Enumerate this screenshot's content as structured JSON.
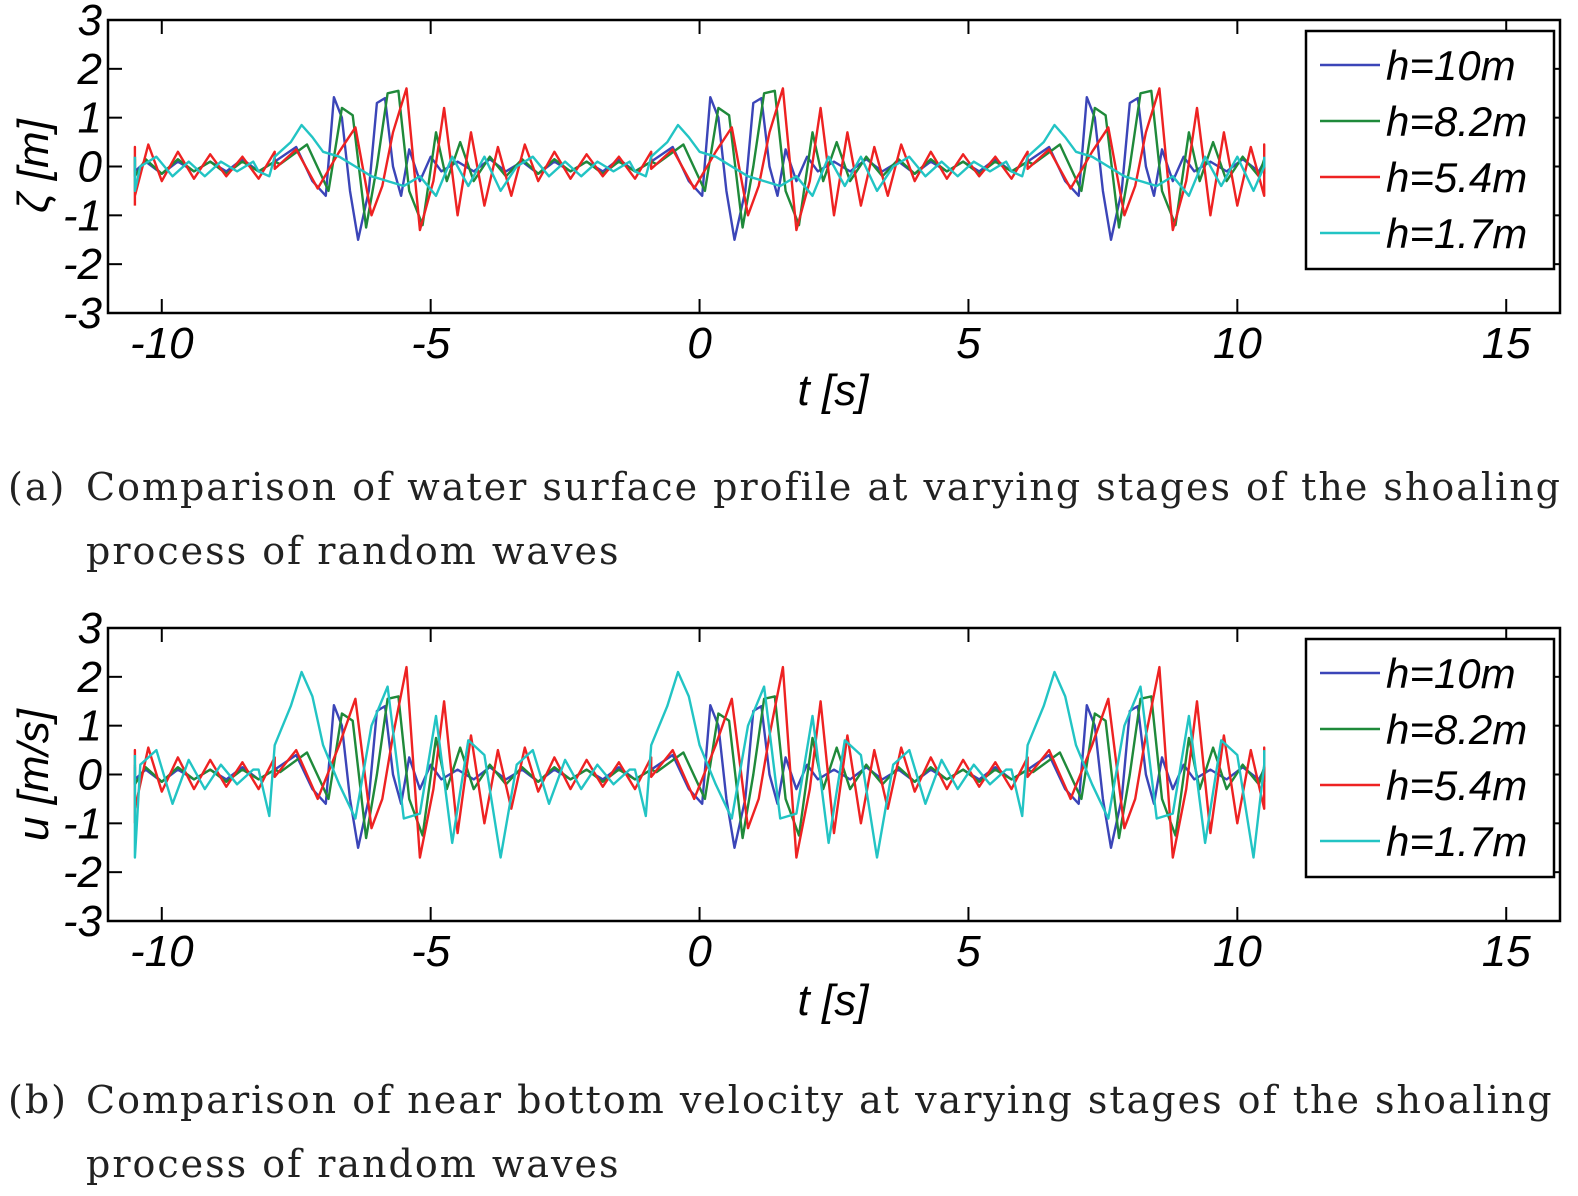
{
  "colors": {
    "h10": "#3b45b8",
    "h82": "#1f8a3a",
    "h54": "#ee2222",
    "h17": "#22c4c4"
  },
  "captions": {
    "a": {
      "label": "(a)",
      "line1": "Comparison of water surface profile at varying stages of the shoaling",
      "line2": "process of random waves"
    },
    "b": {
      "label": "(b)",
      "line1": "Comparison of near bottom velocity at varying stages of the shoaling",
      "line2": "process of random waves"
    }
  },
  "chart_data": [
    {
      "type": "line",
      "panel": "a",
      "xlabel": "t [s]",
      "ylabel": "ζ [m]",
      "xlim": [
        -11,
        16
      ],
      "ylim": [
        -3,
        3
      ],
      "xticks": [
        -10,
        -5,
        0,
        5,
        10,
        15
      ],
      "yticks": [
        3,
        2,
        1,
        0,
        -1,
        -2,
        -3
      ],
      "legend_position": "top-right",
      "grid": false,
      "period_s": 7,
      "series": [
        {
          "name": "h=10m",
          "color": "#3b45b8",
          "x": [
            -0.9,
            -0.5,
            -0.2,
            0.05,
            0.2,
            0.35,
            0.5,
            0.65,
            0.85,
            1.0,
            1.15,
            1.3,
            1.45,
            1.6,
            1.8,
            2.0,
            2.2,
            2.5,
            2.8,
            3.1,
            3.4,
            3.7,
            4.0,
            4.3,
            4.6,
            4.9,
            5.2,
            5.5,
            5.8,
            6.1
          ],
          "y": [
            0.1,
            0.4,
            -0.3,
            -0.6,
            1.42,
            1.0,
            -0.5,
            -1.5,
            -0.5,
            1.3,
            1.4,
            0.0,
            -0.6,
            0.35,
            -0.3,
            0.2,
            -0.1,
            0.1,
            -0.1,
            0.15,
            -0.1,
            0.1,
            -0.15,
            0.1,
            -0.1,
            0.1,
            -0.1,
            0.15,
            -0.1,
            0.1
          ]
        },
        {
          "name": "h=8.2m",
          "color": "#1f8a3a",
          "x": [
            -0.8,
            -0.3,
            0.1,
            0.35,
            0.55,
            0.8,
            1.0,
            1.2,
            1.4,
            1.6,
            1.85,
            2.1,
            2.3,
            2.55,
            2.8,
            3.1,
            3.4,
            3.7,
            4.0,
            4.3,
            4.6,
            4.9,
            5.2,
            5.5,
            5.8,
            6.1
          ],
          "y": [
            0.05,
            0.45,
            -0.5,
            1.2,
            1.05,
            -1.25,
            0.0,
            1.5,
            1.55,
            -0.5,
            -1.2,
            0.7,
            -0.3,
            0.5,
            -0.3,
            0.2,
            -0.2,
            0.15,
            -0.15,
            0.15,
            -0.1,
            0.1,
            -0.15,
            0.1,
            -0.1,
            0.1
          ]
        },
        {
          "name": "h=5.4m",
          "color": "#ee2222",
          "x": [
            -0.9,
            -0.5,
            -0.1,
            0.3,
            0.6,
            0.9,
            1.1,
            1.3,
            1.55,
            1.8,
            2.05,
            2.25,
            2.5,
            2.75,
            3.0,
            3.25,
            3.5,
            3.75,
            4.0,
            4.3,
            4.6,
            4.9,
            5.2,
            5.5,
            5.8,
            6.1
          ],
          "y": [
            -0.05,
            0.35,
            -0.45,
            0.3,
            0.8,
            -1.0,
            -0.4,
            0.7,
            1.6,
            -1.3,
            -0.3,
            1.2,
            -1.0,
            0.7,
            -0.8,
            0.4,
            -0.6,
            0.45,
            -0.3,
            0.3,
            -0.25,
            0.25,
            -0.2,
            0.2,
            -0.25,
            0.3
          ]
        },
        {
          "name": "h=1.7m",
          "color": "#22c4c4",
          "x": [
            -1.2,
            -0.9,
            -0.6,
            -0.4,
            -0.2,
            0.0,
            0.3,
            0.6,
            0.9,
            1.2,
            1.5,
            1.8,
            2.1,
            2.4,
            2.7,
            3.0,
            3.3,
            3.6,
            3.9,
            4.2,
            4.5,
            4.8,
            5.1,
            5.4,
            5.7,
            6.0
          ],
          "y": [
            -0.1,
            0.2,
            0.5,
            0.85,
            0.6,
            0.3,
            0.2,
            0.0,
            -0.2,
            -0.3,
            -0.4,
            -0.2,
            -0.6,
            0.2,
            -0.4,
            0.2,
            -0.5,
            0.0,
            0.2,
            -0.2,
            0.1,
            -0.2,
            0.1,
            -0.1,
            0.1,
            -0.2
          ]
        }
      ]
    },
    {
      "type": "line",
      "panel": "b",
      "xlabel": "t [s]",
      "ylabel": "u [m/s]",
      "xlim": [
        -11,
        16
      ],
      "ylim": [
        -3,
        3
      ],
      "xticks": [
        -10,
        -5,
        0,
        5,
        10,
        15
      ],
      "yticks": [
        3,
        2,
        1,
        0,
        -1,
        -2,
        -3
      ],
      "legend_position": "top-right",
      "grid": false,
      "period_s": 7,
      "series": [
        {
          "name": "h=10m",
          "color": "#3b45b8",
          "x": [
            -0.9,
            -0.5,
            -0.2,
            0.05,
            0.2,
            0.35,
            0.5,
            0.65,
            0.85,
            1.0,
            1.15,
            1.3,
            1.45,
            1.6,
            1.8,
            2.0,
            2.2,
            2.5,
            2.8,
            3.1,
            3.4,
            3.7,
            4.0,
            4.3,
            4.6,
            4.9,
            5.2,
            5.5,
            5.8,
            6.1
          ],
          "y": [
            0.1,
            0.4,
            -0.3,
            -0.6,
            1.42,
            1.0,
            -0.5,
            -1.5,
            -0.5,
            1.3,
            1.4,
            0.0,
            -0.6,
            0.35,
            -0.3,
            0.2,
            -0.1,
            0.1,
            -0.1,
            0.15,
            -0.1,
            0.1,
            -0.15,
            0.1,
            -0.1,
            0.1,
            -0.1,
            0.15,
            -0.1,
            0.1
          ]
        },
        {
          "name": "h=8.2m",
          "color": "#1f8a3a",
          "x": [
            -0.8,
            -0.3,
            0.1,
            0.35,
            0.55,
            0.8,
            1.0,
            1.2,
            1.4,
            1.6,
            1.85,
            2.1,
            2.3,
            2.55,
            2.8,
            3.1,
            3.4,
            3.7,
            4.0,
            4.3,
            4.6,
            4.9,
            5.2,
            5.5,
            5.8,
            6.1
          ],
          "y": [
            0.05,
            0.45,
            -0.5,
            1.25,
            1.1,
            -1.3,
            0.0,
            1.55,
            1.6,
            -0.5,
            -1.25,
            0.75,
            -0.3,
            0.55,
            -0.3,
            0.2,
            -0.2,
            0.15,
            -0.15,
            0.15,
            -0.1,
            0.1,
            -0.15,
            0.1,
            -0.1,
            0.1
          ]
        },
        {
          "name": "h=5.4m",
          "color": "#ee2222",
          "x": [
            -0.9,
            -0.5,
            -0.1,
            0.3,
            0.6,
            0.9,
            1.1,
            1.3,
            1.55,
            1.8,
            2.05,
            2.25,
            2.5,
            2.75,
            3.0,
            3.25,
            3.5,
            3.75,
            4.0,
            4.3,
            4.6,
            4.9,
            5.2,
            5.5,
            5.8,
            6.1
          ],
          "y": [
            -0.05,
            0.5,
            -0.5,
            0.6,
            1.55,
            -1.1,
            -0.5,
            0.8,
            2.2,
            -1.7,
            -0.3,
            1.5,
            -1.2,
            0.8,
            -1.0,
            0.5,
            -0.7,
            0.55,
            -0.35,
            0.35,
            -0.3,
            0.3,
            -0.25,
            0.25,
            -0.3,
            0.35
          ]
        },
        {
          "name": "h=1.7m",
          "color": "#22c4c4",
          "x": [
            -1.2,
            -0.9,
            -0.6,
            -0.4,
            -0.2,
            0.0,
            0.3,
            0.6,
            0.9,
            1.2,
            1.5,
            1.8,
            2.1,
            2.4,
            2.7,
            3.0,
            3.3,
            3.6,
            3.9,
            4.2,
            4.5,
            4.8,
            5.1,
            5.4,
            5.7,
            6.0
          ],
          "y": [
            0.1,
            0.6,
            1.4,
            2.1,
            1.6,
            0.6,
            -0.2,
            -0.9,
            1.0,
            1.8,
            -0.9,
            -0.8,
            1.2,
            -1.4,
            0.7,
            0.4,
            -1.7,
            0.2,
            0.5,
            -0.6,
            0.3,
            -0.3,
            0.2,
            -0.2,
            0.1,
            -0.85
          ]
        }
      ]
    }
  ]
}
